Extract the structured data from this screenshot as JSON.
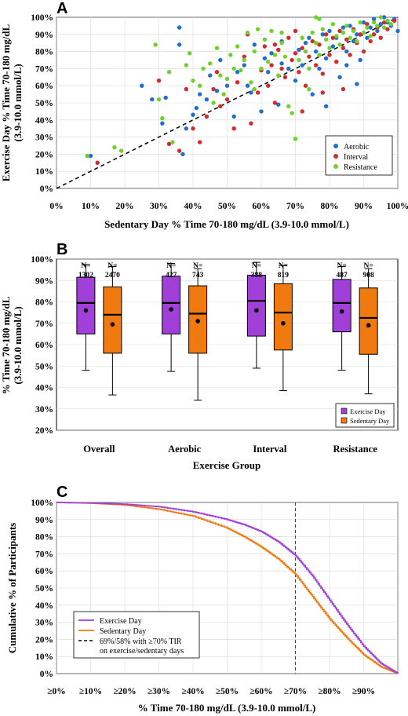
{
  "colors": {
    "aerobic": "#1f6fd1",
    "interval": "#d42a2a",
    "resistance": "#6fd12a",
    "exercise": "#a040d8",
    "sedentary": "#f07a10"
  },
  "chart_data": [
    {
      "panel": "A",
      "type": "scatter",
      "xlabel": "Sedentary Day % Time 70-180 mg/dL (3.9-10.0 mmol/L)",
      "ylabel": [
        "Exercise Day % Time 70-180 mg/dL",
        "(3.9-10.0 mmol/L)"
      ],
      "xlim": [
        0,
        100
      ],
      "ylim": [
        0,
        100
      ],
      "xticks": [
        "0%",
        "10%",
        "20%",
        "30%",
        "40%",
        "50%",
        "60%",
        "70%",
        "80%",
        "90%",
        "100%"
      ],
      "yticks": [
        "0%",
        "10%",
        "20%",
        "30%",
        "40%",
        "50%",
        "60%",
        "70%",
        "80%",
        "90%",
        "100%"
      ],
      "identity_line": true,
      "legend": {
        "position": "bottom-right",
        "entries": [
          "Aerobic",
          "Interval",
          "Resistance"
        ]
      },
      "series": [
        {
          "name": "Aerobic",
          "points": [
            [
              10,
              19
            ],
            [
              25,
              60
            ],
            [
              28,
              52
            ],
            [
              31,
              38
            ],
            [
              32,
              53
            ],
            [
              36,
              94
            ],
            [
              36,
              84
            ],
            [
              37,
              20
            ],
            [
              38,
              35
            ],
            [
              40,
              43
            ],
            [
              41,
              47
            ],
            [
              42,
              55
            ],
            [
              44,
              52
            ],
            [
              45,
              66
            ],
            [
              47,
              57
            ],
            [
              48,
              75
            ],
            [
              50,
              60
            ],
            [
              52,
              42
            ],
            [
              53,
              68
            ],
            [
              55,
              72
            ],
            [
              56,
              60
            ],
            [
              57,
              56
            ],
            [
              60,
              45
            ],
            [
              61,
              76
            ],
            [
              62,
              68
            ],
            [
              63,
              79
            ],
            [
              65,
              49
            ],
            [
              66,
              73
            ],
            [
              68,
              70
            ],
            [
              70,
              63
            ],
            [
              71,
              81
            ],
            [
              72,
              72
            ],
            [
              73,
              85
            ],
            [
              74,
              88
            ],
            [
              75,
              55
            ],
            [
              76,
              80
            ],
            [
              77,
              70
            ],
            [
              78,
              90
            ],
            [
              79,
              76
            ],
            [
              80,
              92
            ],
            [
              81,
              83
            ],
            [
              82,
              88
            ],
            [
              83,
              65
            ],
            [
              84,
              94
            ],
            [
              85,
              80
            ],
            [
              86,
              95
            ],
            [
              87,
              86
            ],
            [
              88,
              90
            ],
            [
              89,
              75
            ],
            [
              90,
              97
            ],
            [
              91,
              88
            ],
            [
              92,
              94
            ],
            [
              93,
              99
            ],
            [
              94,
              92
            ],
            [
              95,
              96
            ],
            [
              96,
              100
            ],
            [
              97,
              97
            ],
            [
              98,
              95
            ],
            [
              99,
              99
            ],
            [
              100,
              92
            ],
            [
              88,
              61
            ],
            [
              85,
              72
            ],
            [
              79,
              48
            ],
            [
              66,
              86
            ],
            [
              58,
              84
            ]
          ]
        },
        {
          "name": "Interval",
          "points": [
            [
              12,
              15
            ],
            [
              30,
              63
            ],
            [
              33,
              26
            ],
            [
              36,
              22
            ],
            [
              38,
              58
            ],
            [
              40,
              35
            ],
            [
              42,
              27
            ],
            [
              44,
              42
            ],
            [
              46,
              58
            ],
            [
              47,
              68
            ],
            [
              48,
              48
            ],
            [
              50,
              52
            ],
            [
              52,
              35
            ],
            [
              53,
              62
            ],
            [
              55,
              77
            ],
            [
              57,
              38
            ],
            [
              59,
              56
            ],
            [
              60,
              69
            ],
            [
              61,
              83
            ],
            [
              62,
              60
            ],
            [
              63,
              72
            ],
            [
              64,
              50
            ],
            [
              65,
              81
            ],
            [
              66,
              70
            ],
            [
              67,
              65
            ],
            [
              68,
              88
            ],
            [
              69,
              75
            ],
            [
              70,
              79
            ],
            [
              71,
              68
            ],
            [
              72,
              82
            ],
            [
              73,
              60
            ],
            [
              74,
              77
            ],
            [
              75,
              86
            ],
            [
              76,
              72
            ],
            [
              77,
              84
            ],
            [
              78,
              67
            ],
            [
              79,
              90
            ],
            [
              80,
              78
            ],
            [
              81,
              88
            ],
            [
              82,
              74
            ],
            [
              83,
              92
            ],
            [
              84,
              82
            ],
            [
              85,
              87
            ],
            [
              86,
              78
            ],
            [
              87,
              93
            ],
            [
              88,
              85
            ],
            [
              89,
              90
            ],
            [
              90,
              80
            ],
            [
              91,
              96
            ],
            [
              92,
              86
            ],
            [
              93,
              90
            ],
            [
              94,
              94
            ],
            [
              95,
              88
            ],
            [
              96,
              97
            ],
            [
              97,
              93
            ],
            [
              99,
              98
            ],
            [
              78,
              56
            ],
            [
              72,
              45
            ],
            [
              64,
              84
            ],
            [
              56,
              90
            ],
            [
              70,
              92
            ],
            [
              84,
              58
            ]
          ]
        },
        {
          "name": "Resistance",
          "points": [
            [
              9,
              19
            ],
            [
              17,
              24
            ],
            [
              19,
              22
            ],
            [
              29,
              84
            ],
            [
              30,
              52
            ],
            [
              31,
              41
            ],
            [
              33,
              68
            ],
            [
              34,
              27
            ],
            [
              38,
              72
            ],
            [
              39,
              79
            ],
            [
              40,
              63
            ],
            [
              42,
              60
            ],
            [
              43,
              70
            ],
            [
              45,
              73
            ],
            [
              46,
              50
            ],
            [
              47,
              82
            ],
            [
              48,
              66
            ],
            [
              49,
              55
            ],
            [
              50,
              64
            ],
            [
              51,
              78
            ],
            [
              52,
              70
            ],
            [
              53,
              83
            ],
            [
              54,
              69
            ],
            [
              55,
              75
            ],
            [
              56,
              91
            ],
            [
              57,
              62
            ],
            [
              58,
              80
            ],
            [
              59,
              93
            ],
            [
              60,
              70
            ],
            [
              61,
              87
            ],
            [
              62,
              74
            ],
            [
              63,
              92
            ],
            [
              64,
              78
            ],
            [
              65,
              66
            ],
            [
              66,
              85
            ],
            [
              67,
              77
            ],
            [
              68,
              48
            ],
            [
              69,
              44
            ],
            [
              70,
              29
            ],
            [
              71,
              75
            ],
            [
              72,
              88
            ],
            [
              73,
              80
            ],
            [
              74,
              70
            ],
            [
              75,
              91
            ],
            [
              76,
              85
            ],
            [
              77,
              78
            ],
            [
              78,
              93
            ],
            [
              79,
              87
            ],
            [
              80,
              82
            ],
            [
              81,
              96
            ],
            [
              82,
              89
            ],
            [
              83,
              84
            ],
            [
              84,
              91
            ],
            [
              85,
              95
            ],
            [
              86,
              88
            ],
            [
              87,
              92
            ],
            [
              88,
              86
            ],
            [
              89,
              97
            ],
            [
              90,
              91
            ],
            [
              91,
              94
            ],
            [
              92,
              89
            ],
            [
              93,
              97
            ],
            [
              94,
              95
            ],
            [
              95,
              100
            ],
            [
              96,
              94
            ],
            [
              97,
              98
            ],
            [
              98,
              96
            ],
            [
              76,
              100
            ],
            [
              77,
              99
            ],
            [
              74,
              58
            ],
            [
              66,
              91
            ],
            [
              58,
              58
            ]
          ]
        }
      ]
    },
    {
      "panel": "B",
      "type": "boxplot",
      "xlabel": "Exercise Group",
      "ylabel": [
        "% Time 70-180 mg/dL",
        "(3.9-10.0 mmol/L)"
      ],
      "ylim": [
        20,
        100
      ],
      "yticks": [
        "20%",
        "30%",
        "40%",
        "50%",
        "60%",
        "70%",
        "80%",
        "90%",
        "100%"
      ],
      "categories": [
        "Overall",
        "Aerobic",
        "Interval",
        "Resistance"
      ],
      "n_prefix": "N=",
      "legend": {
        "position": "bottom-right",
        "entries": [
          "Exercise Day",
          "Sedentary Day"
        ]
      },
      "series": [
        {
          "name": "Exercise Day",
          "boxes": [
            {
              "n": "1302",
              "whisker_low": 48,
              "q1": 65,
              "median": 79.5,
              "q3": 91.5,
              "whisker_high": 97.5,
              "mean": 76
            },
            {
              "n": "427",
              "whisker_low": 47.5,
              "q1": 65,
              "median": 79.5,
              "q3": 92,
              "whisker_high": 98,
              "mean": 76.5
            },
            {
              "n": "388",
              "whisker_low": 49,
              "q1": 64,
              "median": 80.5,
              "q3": 92.5,
              "whisker_high": 98.5,
              "mean": 76
            },
            {
              "n": "487",
              "whisker_low": 48,
              "q1": 66,
              "median": 79.5,
              "q3": 90.5,
              "whisker_high": 96.5,
              "mean": 75.5
            }
          ]
        },
        {
          "name": "Sedentary Day",
          "boxes": [
            {
              "n": "2470",
              "whisker_low": 36.5,
              "q1": 56,
              "median": 74,
              "q3": 87,
              "whisker_high": 96.5,
              "mean": 69.5
            },
            {
              "n": "743",
              "whisker_low": 34,
              "q1": 56,
              "median": 74.5,
              "q3": 87.5,
              "whisker_high": 95.5,
              "mean": 71
            },
            {
              "n": "819",
              "whisker_low": 38.5,
              "q1": 57.5,
              "median": 75,
              "q3": 88.5,
              "whisker_high": 97,
              "mean": 70
            },
            {
              "n": "908",
              "whisker_low": 37,
              "q1": 55.5,
              "median": 72.5,
              "q3": 86.5,
              "whisker_high": 95.5,
              "mean": 69
            }
          ]
        }
      ]
    },
    {
      "panel": "C",
      "type": "line",
      "xlabel": "% Time 70-180 mg/dL (3.9-10.0 mmol/L)",
      "ylabel": "Cumulative % of Participants",
      "xlim": [
        0,
        100
      ],
      "ylim": [
        0,
        100
      ],
      "xticks": [
        "≥0%",
        "≥10%",
        "≥20%",
        "≥30%",
        "≥40%",
        "≥50%",
        "≥60%",
        "≥70%",
        "≥80%",
        "≥90%"
      ],
      "yticks": [
        "0%",
        "10%",
        "20%",
        "30%",
        "40%",
        "50%",
        "60%",
        "70%",
        "80%",
        "90%",
        "100%"
      ],
      "reference_line_x": 70,
      "legend": {
        "position": "bottom-left",
        "entries": [
          "Exercise Day",
          "Sedentary Day",
          "69%/58% with ≥70% TIR",
          "on exercise/sedentary days"
        ]
      },
      "series": [
        {
          "name": "Exercise Day",
          "x": [
            0,
            10,
            20,
            30,
            40,
            50,
            55,
            60,
            65,
            70,
            75,
            80,
            85,
            90,
            95,
            100
          ],
          "y": [
            100,
            99.7,
            99,
            97.5,
            94.5,
            90,
            87,
            83,
            77,
            69,
            57,
            43,
            29,
            16,
            6,
            0
          ]
        },
        {
          "name": "Sedentary Day",
          "x": [
            0,
            10,
            20,
            30,
            40,
            50,
            55,
            60,
            65,
            70,
            75,
            80,
            85,
            90,
            95,
            100
          ],
          "y": [
            100,
            99.6,
            98.5,
            96,
            92,
            85,
            80,
            74,
            67,
            58,
            45,
            32,
            21,
            11,
            4,
            0
          ]
        }
      ]
    }
  ]
}
